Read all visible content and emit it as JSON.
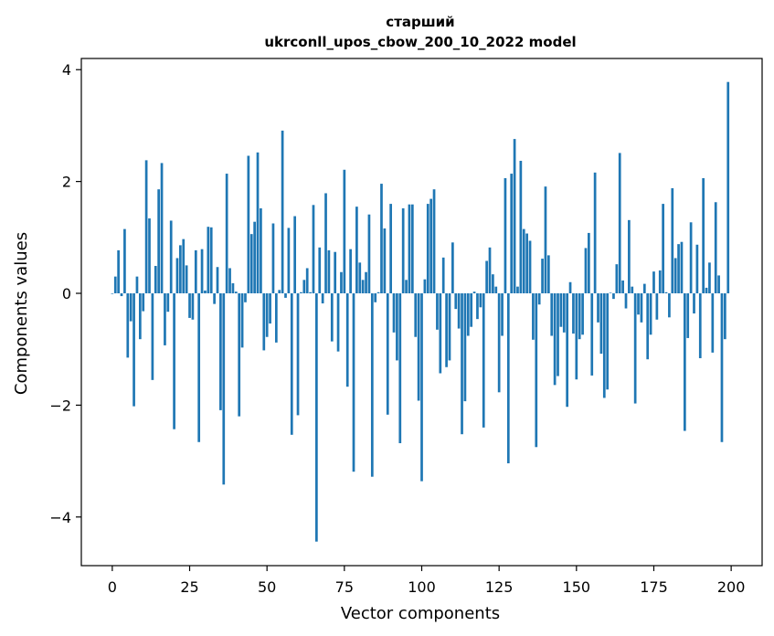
{
  "chart_data": {
    "type": "bar",
    "title": "старший",
    "subtitle": "ukrconll_upos_cbow_200_10_2022 model",
    "xlabel": "Vector components",
    "ylabel": "Components values",
    "xlim": [
      -10,
      210
    ],
    "ylim": [
      -4.87,
      4.2
    ],
    "xticks": [
      0,
      25,
      50,
      75,
      100,
      125,
      150,
      175,
      200
    ],
    "xtick_labels": [
      "0",
      "25",
      "50",
      "75",
      "100",
      "125",
      "150",
      "175",
      "200"
    ],
    "yticks": [
      4,
      2,
      0,
      -2,
      -4
    ],
    "ytick_labels": [
      "4",
      "2",
      "0",
      "−2",
      "−4"
    ],
    "grid": false,
    "legend": "none",
    "bar_color": "#1f77b4",
    "x": [
      0,
      1,
      2,
      3,
      4,
      5,
      6,
      7,
      8,
      9,
      10,
      11,
      12,
      13,
      14,
      15,
      16,
      17,
      18,
      19,
      20,
      21,
      22,
      23,
      24,
      25,
      26,
      27,
      28,
      29,
      30,
      31,
      32,
      33,
      34,
      35,
      36,
      37,
      38,
      39,
      40,
      41,
      42,
      43,
      44,
      45,
      46,
      47,
      48,
      49,
      50,
      51,
      52,
      53,
      54,
      55,
      56,
      57,
      58,
      59,
      60,
      61,
      62,
      63,
      64,
      65,
      66,
      67,
      68,
      69,
      70,
      71,
      72,
      73,
      74,
      75,
      76,
      77,
      78,
      79,
      80,
      81,
      82,
      83,
      84,
      85,
      86,
      87,
      88,
      89,
      90,
      91,
      92,
      93,
      94,
      95,
      96,
      97,
      98,
      99,
      100,
      101,
      102,
      103,
      104,
      105,
      106,
      107,
      108,
      109,
      110,
      111,
      112,
      113,
      114,
      115,
      116,
      117,
      118,
      119,
      120,
      121,
      122,
      123,
      124,
      125,
      126,
      127,
      128,
      129,
      130,
      131,
      132,
      133,
      134,
      135,
      136,
      137,
      138,
      139,
      140,
      141,
      142,
      143,
      144,
      145,
      146,
      147,
      148,
      149,
      150,
      151,
      152,
      153,
      154,
      155,
      156,
      157,
      158,
      159,
      160,
      161,
      162,
      163,
      164,
      165,
      166,
      167,
      168,
      169,
      170,
      171,
      172,
      173,
      174,
      175,
      176,
      177,
      178,
      179,
      180,
      181,
      182,
      183,
      184,
      185,
      186,
      187,
      188,
      189,
      190,
      191,
      192,
      193,
      194,
      195,
      196,
      197,
      198,
      199
    ],
    "values": [
      0.0,
      0.3,
      0.77,
      -0.05,
      1.15,
      -1.15,
      -0.5,
      -2.02,
      0.3,
      -0.82,
      -0.32,
      2.38,
      1.34,
      -1.55,
      0.49,
      1.86,
      2.33,
      -0.93,
      -0.33,
      1.3,
      -2.43,
      0.63,
      0.86,
      0.97,
      0.5,
      -0.44,
      -0.47,
      0.77,
      -2.66,
      0.79,
      0.05,
      1.19,
      1.18,
      -0.19,
      0.47,
      -2.09,
      -3.42,
      2.14,
      0.45,
      0.18,
      0.03,
      -2.2,
      -0.97,
      -0.16,
      2.46,
      1.06,
      1.28,
      2.52,
      1.52,
      -1.02,
      -0.78,
      -0.54,
      1.25,
      -0.88,
      0.06,
      2.91,
      -0.08,
      1.17,
      -2.53,
      1.38,
      -2.18,
      0.02,
      0.24,
      0.45,
      0.02,
      1.58,
      -4.44,
      0.82,
      -0.18,
      1.79,
      0.77,
      -0.86,
      0.74,
      -1.04,
      0.38,
      2.21,
      -1.67,
      0.79,
      -3.19,
      1.55,
      0.55,
      0.24,
      0.38,
      1.41,
      -3.28,
      -0.16,
      0.02,
      1.96,
      1.16,
      -2.17,
      1.6,
      -0.7,
      -1.2,
      -2.68,
      1.52,
      0.24,
      1.59,
      1.59,
      -0.78,
      -1.92,
      -3.36,
      0.25,
      1.6,
      1.69,
      1.86,
      -0.65,
      -1.43,
      0.64,
      -1.32,
      -1.2,
      0.91,
      -0.28,
      -0.63,
      -2.52,
      -1.93,
      -0.76,
      -0.6,
      0.03,
      -0.46,
      -0.25,
      -2.4,
      0.58,
      0.82,
      0.34,
      0.12,
      -1.77,
      -0.76,
      2.06,
      -3.04,
      2.14,
      2.76,
      0.12,
      2.37,
      1.15,
      1.07,
      0.94,
      -0.83,
      -2.75,
      -0.2,
      0.62,
      1.91,
      0.68,
      -0.76,
      -1.64,
      -1.48,
      -0.6,
      -0.7,
      -2.03,
      0.2,
      -0.72,
      -1.54,
      -0.82,
      -0.74,
      0.81,
      1.08,
      -1.47,
      2.16,
      -0.52,
      -1.08,
      -1.87,
      -1.72,
      0.01,
      -0.1,
      0.52,
      2.51,
      0.23,
      -0.27,
      1.31,
      0.12,
      -1.97,
      -0.38,
      -0.52,
      0.17,
      -1.18,
      -0.74,
      0.39,
      -0.47,
      0.41,
      1.6,
      0.02,
      -0.43,
      1.88,
      0.63,
      0.88,
      0.92,
      -2.46,
      -0.8,
      1.27,
      -0.36,
      0.87,
      -1.16,
      2.06,
      0.1,
      0.55,
      -1.06,
      1.63,
      0.32,
      -2.66,
      -0.82,
      3.78
    ]
  }
}
